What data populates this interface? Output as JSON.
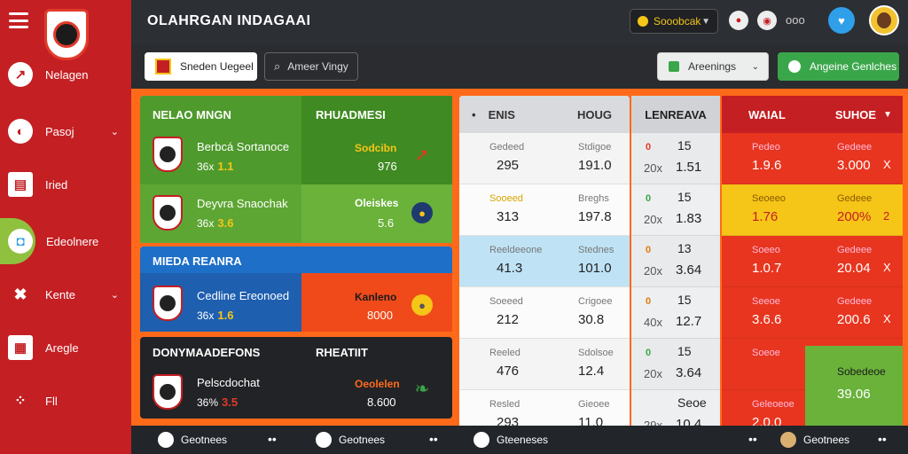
{
  "app": {
    "title": "OLAHRGAN INDAGAAI"
  },
  "sidebar": {
    "items": [
      {
        "label": "Nelagen",
        "icon": "rocket-icon"
      },
      {
        "label": "Pasoj",
        "icon": "ball-icon"
      },
      {
        "label": "Iried",
        "icon": "card-icon"
      },
      {
        "label": "Edeolnere",
        "icon": "shield-icon"
      },
      {
        "label": "Kente",
        "icon": "tools-icon"
      },
      {
        "label": "Aregle",
        "icon": "grid-icon"
      },
      {
        "label": "Fll",
        "icon": "dots-icon"
      }
    ]
  },
  "topbar": {
    "select_label": "Sooobcak",
    "more": "ooo"
  },
  "toolbar": {
    "brand_label": "Sneden Uegeel",
    "search_placeholder": "Ameer Vingy",
    "select_label": "Areenings",
    "green_button": "Angeine Genlches"
  },
  "panels": [
    {
      "header": "NELAO MNGN",
      "status_header": "RHUADMESI",
      "teams": [
        {
          "name": "Berbcá Sortanoce",
          "stat": "36x",
          "value": "1.1",
          "status_label": "Sodcibn",
          "status_value": "976"
        },
        {
          "name": "Deyvra Snaochak",
          "stat": "36x",
          "value": "3.6",
          "status_label": "Oleiskes",
          "status_value": "5.6"
        }
      ]
    },
    {
      "header": "MIEDA REANRA",
      "teams": [
        {
          "name": "Cedline Ereonoed",
          "stat": "36x",
          "value": "1.6",
          "status_label": "Kanleno",
          "status_value": "8000"
        }
      ]
    },
    {
      "header": "DONYMAADEFONS",
      "status_header": "RHEATIIT",
      "teams": [
        {
          "name": "Pelscdochat",
          "stat": "36%",
          "value": "3.5",
          "status_label": "Oeolelen",
          "status_value": "8.600"
        }
      ]
    }
  ],
  "table": {
    "col1": {
      "header_a": "ENIS",
      "header_b": "HOUG",
      "rows": [
        {
          "a_lbl": "Gedeed",
          "a_val": "295",
          "b_lbl": "Stdigoe",
          "b_val": "191.0"
        },
        {
          "a_lbl": "Sooeed",
          "a_val": "313",
          "b_lbl": "Breghs",
          "b_val": "197.8"
        },
        {
          "a_lbl": "Reeldeeone",
          "a_val": "41.3",
          "b_lbl": "Stednes",
          "b_val": "101.0"
        },
        {
          "a_lbl": "Soeeed",
          "a_val": "212",
          "b_lbl": "Crigoee",
          "b_val": "30.8"
        },
        {
          "a_lbl": "Reeled",
          "a_val": "476",
          "b_lbl": "Sdolsoe",
          "b_val": "12.4"
        },
        {
          "a_lbl": "Resled",
          "a_val": "293",
          "b_lbl": "Gieoee",
          "b_val": "11.0"
        }
      ]
    },
    "col2": {
      "header": "LENREAVA",
      "rows": [
        {
          "mark": "0",
          "top": "15",
          "pre": "20x",
          "val": "1.51"
        },
        {
          "mark": "0",
          "top": "15",
          "pre": "20x",
          "val": "1.83"
        },
        {
          "mark": "0",
          "top": "13",
          "pre": "20x",
          "val": "3.64"
        },
        {
          "mark": "0",
          "top": "15",
          "pre": "40x",
          "val": "12.7"
        },
        {
          "mark": "0",
          "top": "15",
          "pre": "20x",
          "val": "3.64"
        },
        {
          "mark": "",
          "top": "Seoe",
          "pre": "29x",
          "val": "10.4"
        }
      ]
    },
    "col3": {
      "header_a": "WAIAL",
      "header_b": "SUHOE",
      "rows": [
        {
          "a_lbl": "Pedeo",
          "a_val": "1.9.6",
          "b_lbl": "Gedeee",
          "b_val": "3.000",
          "x": "X"
        },
        {
          "a_lbl": "Seoeeo",
          "a_val": "1.76",
          "b_lbl": "Gedeee",
          "b_val": "200%",
          "x": "2"
        },
        {
          "a_lbl": "Soeeo",
          "a_val": "1.0.7",
          "b_lbl": "Gedeee",
          "b_val": "20.04",
          "x": "X"
        },
        {
          "a_lbl": "Seeoe",
          "a_val": "3.6.6",
          "b_lbl": "Gedeee",
          "b_val": "200.6",
          "x": "X"
        },
        {
          "a_lbl": "Soeoe",
          "a_val": "",
          "b_lbl": "",
          "b_val": "",
          "x": ""
        },
        {
          "a_lbl": "Geleoeoe",
          "a_val": "2.0.0",
          "b_lbl": "Sobedeoe",
          "b_val": "39.06",
          "x": ""
        }
      ]
    }
  },
  "bottombar": {
    "items": [
      "Geotnees",
      "Geotnees",
      "Gteeneses",
      "Geotnees"
    ],
    "dots": "••"
  },
  "colors": {
    "brand_red": "#c41f23",
    "accent_orange": "#ff6a1a",
    "green": "#3aa64a",
    "yellow": "#f5c518"
  }
}
